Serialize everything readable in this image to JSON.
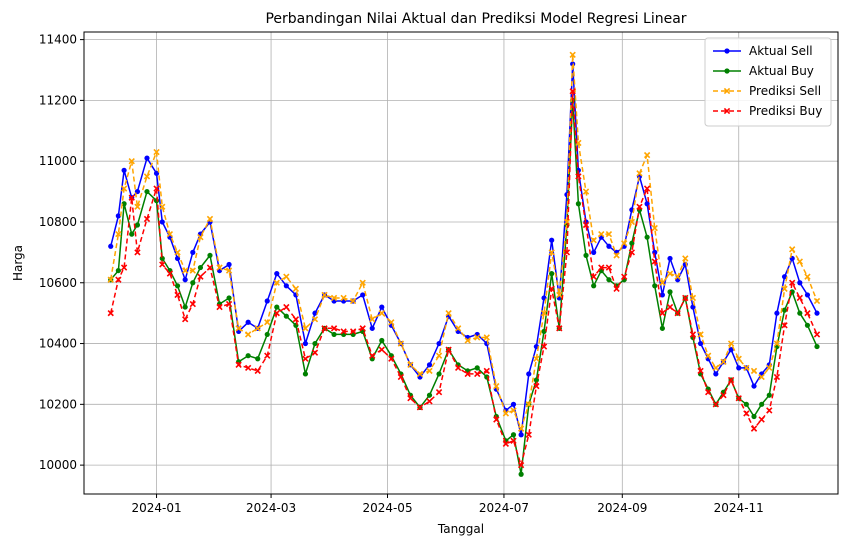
{
  "chart_data": {
    "type": "line",
    "title": "Perbandingan Nilai Aktual dan Prediksi Model Regresi Linear",
    "xlabel": "Tanggal",
    "ylabel": "Harga",
    "xlim": [
      "2023-11-24",
      "2024-12-23"
    ],
    "ylim": [
      9905,
      11425
    ],
    "x_ticks": [
      "2024-01",
      "2024-03",
      "2024-05",
      "2024-07",
      "2024-09",
      "2024-11"
    ],
    "y_ticks": [
      10000,
      10200,
      10400,
      10600,
      10800,
      11000,
      11200,
      11400
    ],
    "grid": true,
    "legend_position": "top-right",
    "dates": [
      "2023-12-08",
      "2023-12-12",
      "2023-12-15",
      "2023-12-19",
      "2023-12-22",
      "2023-12-27",
      "2024-01-01",
      "2024-01-04",
      "2024-01-08",
      "2024-01-12",
      "2024-01-16",
      "2024-01-20",
      "2024-01-24",
      "2024-01-29",
      "2024-02-03",
      "2024-02-08",
      "2024-02-13",
      "2024-02-18",
      "2024-02-23",
      "2024-02-28",
      "2024-03-04",
      "2024-03-09",
      "2024-03-14",
      "2024-03-19",
      "2024-03-24",
      "2024-03-29",
      "2024-04-03",
      "2024-04-08",
      "2024-04-13",
      "2024-04-18",
      "2024-04-23",
      "2024-04-28",
      "2024-05-03",
      "2024-05-08",
      "2024-05-13",
      "2024-05-18",
      "2024-05-23",
      "2024-05-28",
      "2024-06-02",
      "2024-06-07",
      "2024-06-12",
      "2024-06-17",
      "2024-06-22",
      "2024-06-27",
      "2024-07-02",
      "2024-07-06",
      "2024-07-10",
      "2024-07-14",
      "2024-07-18",
      "2024-07-22",
      "2024-07-26",
      "2024-07-30",
      "2024-08-03",
      "2024-08-06",
      "2024-08-09",
      "2024-08-13",
      "2024-08-17",
      "2024-08-21",
      "2024-08-25",
      "2024-08-29",
      "2024-09-02",
      "2024-09-06",
      "2024-09-10",
      "2024-09-14",
      "2024-09-18",
      "2024-09-22",
      "2024-09-26",
      "2024-09-30",
      "2024-10-04",
      "2024-10-08",
      "2024-10-12",
      "2024-10-16",
      "2024-10-20",
      "2024-10-24",
      "2024-10-28",
      "2024-11-01",
      "2024-11-05",
      "2024-11-09",
      "2024-11-13",
      "2024-11-17",
      "2024-11-21",
      "2024-11-25",
      "2024-11-29",
      "2024-12-03",
      "2024-12-07",
      "2024-12-12"
    ],
    "series": [
      {
        "name": "Aktual Sell",
        "color": "#0000ff",
        "style": "solid",
        "marker": "circle",
        "values": [
          10720,
          10820,
          10970,
          10880,
          10900,
          11010,
          10960,
          10800,
          10750,
          10680,
          10610,
          10700,
          10760,
          10800,
          10640,
          10660,
          10440,
          10470,
          10450,
          10540,
          10630,
          10590,
          10560,
          10400,
          10500,
          10560,
          10540,
          10540,
          10540,
          10560,
          10450,
          10520,
          10460,
          10400,
          10330,
          10290,
          10330,
          10400,
          10490,
          10440,
          10420,
          10430,
          10400,
          10250,
          10180,
          10200,
          10100,
          10300,
          10390,
          10550,
          10740,
          10550,
          10890,
          11320,
          10970,
          10800,
          10700,
          10750,
          10720,
          10700,
          10720,
          10840,
          10950,
          10860,
          10700,
          10560,
          10680,
          10610,
          10660,
          10520,
          10400,
          10350,
          10300,
          10340,
          10380,
          10320,
          10320,
          10260,
          10300,
          10330,
          10500,
          10620,
          10680,
          10600,
          10560,
          10500
        ]
      },
      {
        "name": "Aktual Buy",
        "color": "#008000",
        "style": "solid",
        "marker": "circle",
        "values": [
          10610,
          10640,
          10860,
          10760,
          10790,
          10900,
          10870,
          10680,
          10640,
          10590,
          10520,
          10600,
          10650,
          10690,
          10530,
          10550,
          10340,
          10360,
          10350,
          10430,
          10520,
          10490,
          10460,
          10300,
          10400,
          10450,
          10430,
          10430,
          10430,
          10440,
          10350,
          10410,
          10360,
          10300,
          10230,
          10190,
          10230,
          10300,
          10380,
          10330,
          10310,
          10320,
          10290,
          10160,
          10080,
          10100,
          9970,
          10200,
          10280,
          10440,
          10630,
          10450,
          10790,
          11200,
          10860,
          10690,
          10590,
          10640,
          10610,
          10590,
          10610,
          10730,
          10840,
          10750,
          10590,
          10450,
          10570,
          10500,
          10550,
          10420,
          10300,
          10250,
          10200,
          10240,
          10280,
          10220,
          10200,
          10160,
          10200,
          10230,
          10390,
          10510,
          10570,
          10500,
          10460,
          10390
        ]
      },
      {
        "name": "Prediksi Sell",
        "color": "#ffa500",
        "style": "dashed",
        "marker": "x",
        "values": [
          10610,
          10760,
          10910,
          11000,
          10850,
          10950,
          11030,
          10850,
          10760,
          10700,
          10640,
          10640,
          10750,
          10810,
          10650,
          10640,
          10450,
          10430,
          10450,
          10470,
          10600,
          10620,
          10580,
          10450,
          10480,
          10560,
          10550,
          10550,
          10540,
          10600,
          10480,
          10500,
          10470,
          10400,
          10330,
          10300,
          10310,
          10360,
          10500,
          10450,
          10410,
          10420,
          10420,
          10260,
          10170,
          10180,
          10120,
          10200,
          10350,
          10500,
          10700,
          10560,
          10800,
          11350,
          11060,
          10900,
          10740,
          10760,
          10760,
          10690,
          10730,
          10800,
          10960,
          11020,
          10780,
          10600,
          10630,
          10620,
          10680,
          10550,
          10430,
          10360,
          10320,
          10340,
          10400,
          10350,
          10320,
          10310,
          10290,
          10320,
          10400,
          10580,
          10710,
          10670,
          10620,
          10540
        ]
      },
      {
        "name": "Prediksi Buy",
        "color": "#ff0000",
        "style": "dashed",
        "marker": "x",
        "values": [
          10500,
          10610,
          10650,
          10880,
          10700,
          10810,
          10910,
          10660,
          10630,
          10560,
          10480,
          10530,
          10620,
          10650,
          10520,
          10530,
          10330,
          10320,
          10310,
          10360,
          10500,
          10520,
          10480,
          10350,
          10370,
          10450,
          10450,
          10440,
          10440,
          10450,
          10360,
          10380,
          10350,
          10290,
          10220,
          10190,
          10210,
          10240,
          10380,
          10320,
          10300,
          10300,
          10310,
          10150,
          10070,
          10080,
          10000,
          10100,
          10260,
          10390,
          10580,
          10450,
          10700,
          11230,
          10950,
          10790,
          10620,
          10650,
          10650,
          10580,
          10620,
          10700,
          10850,
          10910,
          10670,
          10500,
          10520,
          10500,
          10550,
          10430,
          10310,
          10240,
          10200,
          10230,
          10280,
          10220,
          10170,
          10120,
          10150,
          10180,
          10290,
          10460,
          10600,
          10550,
          10500,
          10430
        ]
      }
    ]
  }
}
